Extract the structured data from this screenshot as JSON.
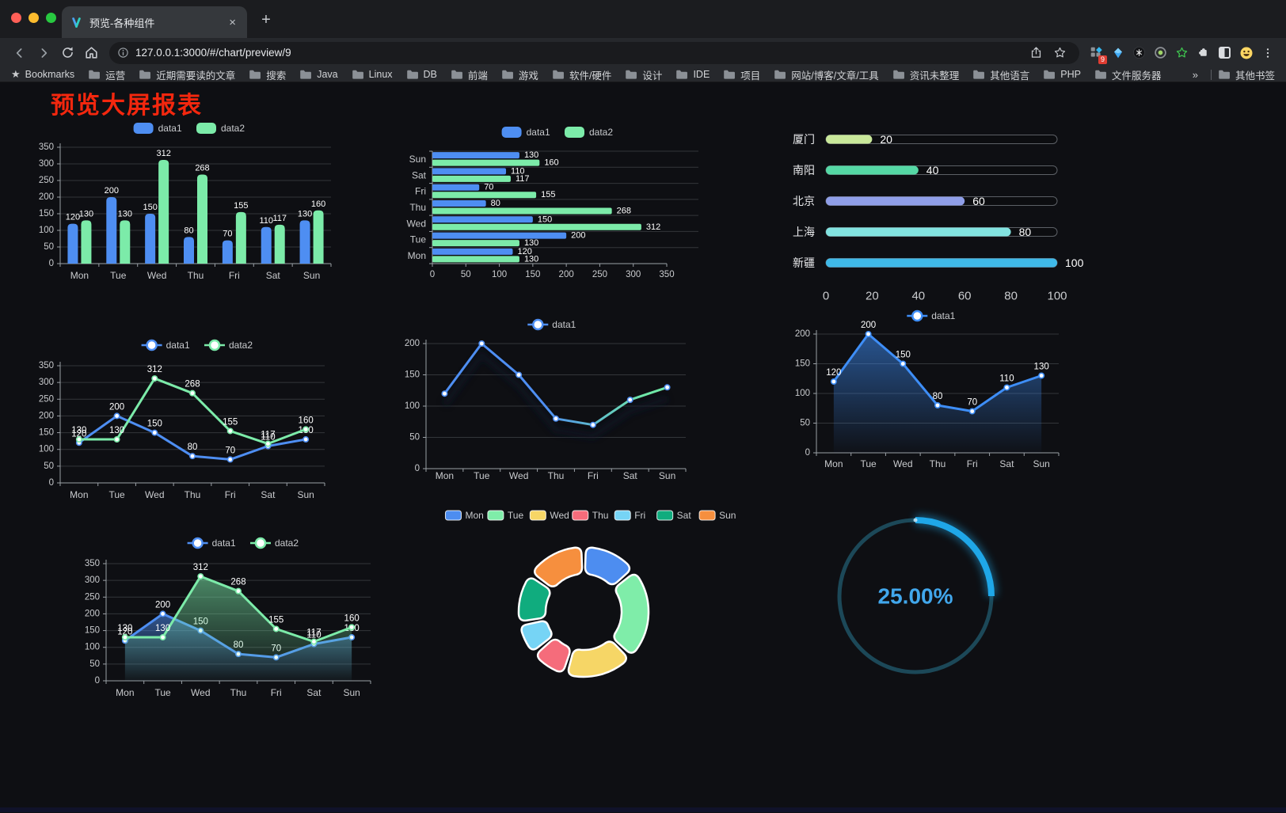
{
  "browser": {
    "tab": {
      "title": "预览-各种组件"
    },
    "address": {
      "url": "127.0.0.1:3000/#/chart/preview/9"
    },
    "extensions_badge": "9",
    "bookmarks_bar": {
      "label": "Bookmarks",
      "folders": [
        "运营",
        "近期需要读的文章",
        "搜索",
        "Java",
        "Linux",
        "DB",
        "前端",
        "游戏",
        "软件/硬件",
        "设计",
        "IDE",
        "项目",
        "网站/博客/文章/工具",
        "资讯未整理",
        "其他语言",
        "PHP",
        "文件服务器"
      ],
      "overflow": "»",
      "other_bookmarks": "其他书签"
    }
  },
  "page": {
    "title": "预览大屏报表",
    "title_color": "#f4270e"
  },
  "chart_data": [
    {
      "id": "bar-vertical",
      "type": "bar",
      "orientation": "vertical",
      "categories": [
        "Mon",
        "Tue",
        "Wed",
        "Thu",
        "Fri",
        "Sat",
        "Sun"
      ],
      "series": [
        {
          "name": "data1",
          "color": "#4E8EF2",
          "values": [
            120,
            200,
            150,
            80,
            70,
            110,
            130
          ]
        },
        {
          "name": "data2",
          "color": "#7CEBA9",
          "values": [
            130,
            130,
            312,
            268,
            155,
            117,
            160
          ]
        }
      ],
      "ylim": [
        0,
        350
      ],
      "yticks": [
        0,
        50,
        100,
        150,
        200,
        250,
        300,
        350
      ],
      "legend_position": "top",
      "grid": true,
      "value_labels": true
    },
    {
      "id": "bar-horizontal",
      "type": "bar",
      "orientation": "horizontal",
      "categories": [
        "Mon",
        "Tue",
        "Wed",
        "Thu",
        "Fri",
        "Sat",
        "Sun"
      ],
      "display_order": "Sun-at-top",
      "series": [
        {
          "name": "data1",
          "color": "#4E8EF2",
          "values": [
            120,
            200,
            150,
            80,
            70,
            110,
            130
          ]
        },
        {
          "name": "data2",
          "color": "#7CEBA9",
          "values": [
            130,
            130,
            312,
            268,
            155,
            117,
            160
          ]
        }
      ],
      "xlim": [
        0,
        350
      ],
      "xticks": [
        0,
        50,
        100,
        150,
        200,
        250,
        300,
        350
      ],
      "legend_position": "top",
      "grid": true,
      "value_labels": true
    },
    {
      "id": "progress-bars",
      "type": "bar",
      "subtype": "progress-list",
      "items": [
        {
          "label": "厦门",
          "value": 20,
          "color": "#C9E89A"
        },
        {
          "label": "南阳",
          "value": 40,
          "color": "#55D8A5"
        },
        {
          "label": "北京",
          "value": 60,
          "color": "#8F9EE8"
        },
        {
          "label": "上海",
          "value": 80,
          "color": "#82E3E0"
        },
        {
          "label": "新疆",
          "value": 100,
          "color": "#3FB9E8"
        }
      ],
      "xlim": [
        0,
        100
      ],
      "xticks": [
        0,
        20,
        40,
        60,
        80,
        100
      ],
      "value_labels": true
    },
    {
      "id": "line-two-series",
      "type": "line",
      "categories": [
        "Mon",
        "Tue",
        "Wed",
        "Thu",
        "Fri",
        "Sat",
        "Sun"
      ],
      "series": [
        {
          "name": "data1",
          "color": "#4E8EF2",
          "values": [
            120,
            200,
            150,
            80,
            70,
            110,
            130
          ]
        },
        {
          "name": "data2",
          "color": "#7CEBA9",
          "values": [
            130,
            130,
            312,
            268,
            155,
            117,
            160
          ]
        }
      ],
      "ylim": [
        0,
        350
      ],
      "yticks": [
        0,
        50,
        100,
        150,
        200,
        250,
        300,
        350
      ],
      "legend_position": "top",
      "grid": true,
      "value_labels": true
    },
    {
      "id": "line-gradient",
      "type": "line",
      "categories": [
        "Mon",
        "Tue",
        "Wed",
        "Thu",
        "Fri",
        "Sat",
        "Sun"
      ],
      "series": [
        {
          "name": "data1",
          "color_gradient": [
            "#4E8EF2",
            "#6FE8A8"
          ],
          "values": [
            120,
            200,
            150,
            80,
            70,
            110,
            130
          ]
        }
      ],
      "ylim": [
        0,
        200
      ],
      "yticks": [
        0,
        50,
        100,
        150,
        200
      ],
      "legend_position": "top",
      "grid": true,
      "value_labels": false
    },
    {
      "id": "area-single",
      "type": "area",
      "categories": [
        "Mon",
        "Tue",
        "Wed",
        "Thu",
        "Fri",
        "Sat",
        "Sun"
      ],
      "series": [
        {
          "name": "data1",
          "color": "#3E8EF7",
          "area": true,
          "values": [
            120,
            200,
            150,
            80,
            70,
            110,
            130
          ]
        }
      ],
      "ylim": [
        0,
        200
      ],
      "yticks": [
        0,
        50,
        100,
        150,
        200
      ],
      "legend_position": "top",
      "grid": true,
      "value_labels": true
    },
    {
      "id": "area-double",
      "type": "area",
      "categories": [
        "Mon",
        "Tue",
        "Wed",
        "Thu",
        "Fri",
        "Sat",
        "Sun"
      ],
      "series": [
        {
          "name": "data1",
          "color": "#4E8EF2",
          "area": true,
          "values": [
            120,
            200,
            150,
            80,
            70,
            110,
            130
          ]
        },
        {
          "name": "data2",
          "color": "#7CEBA9",
          "area": true,
          "values": [
            130,
            130,
            312,
            268,
            155,
            117,
            160
          ]
        }
      ],
      "ylim": [
        0,
        350
      ],
      "yticks": [
        0,
        50,
        100,
        150,
        200,
        250,
        300,
        350
      ],
      "legend_position": "top",
      "grid": true,
      "value_labels": true
    },
    {
      "id": "donut",
      "type": "pie",
      "shape": "donut",
      "legend_position": "top",
      "items": [
        {
          "label": "Mon",
          "value": 120,
          "color": "#4D8DF0"
        },
        {
          "label": "Tue",
          "value": 200,
          "color": "#7FEDA9"
        },
        {
          "label": "Wed",
          "value": 150,
          "color": "#F6D666"
        },
        {
          "label": "Thu",
          "value": 80,
          "color": "#F56C7B"
        },
        {
          "label": "Fri",
          "value": 70,
          "color": "#76D4F5"
        },
        {
          "label": "Sat",
          "value": 110,
          "color": "#10AC7E"
        },
        {
          "label": "Sun",
          "value": 130,
          "color": "#F68F3E"
        }
      ]
    },
    {
      "id": "gauge",
      "type": "gauge",
      "value": 25,
      "max": 100,
      "display": "25.00%",
      "arc_color": "#1FA7E8",
      "track_color": "#1C4858",
      "text_color": "#41A7EC"
    }
  ]
}
